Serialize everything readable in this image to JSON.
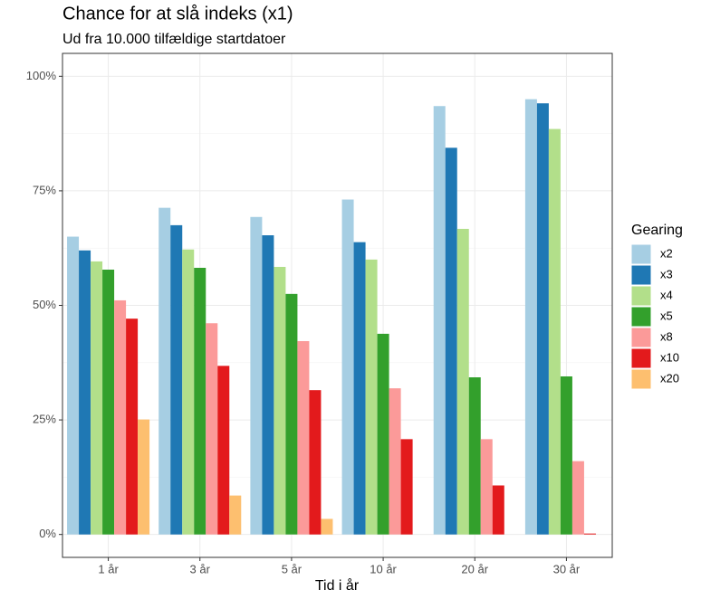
{
  "chart_data": {
    "type": "bar",
    "title": "Chance for at slå indeks (x1)",
    "subtitle": "Ud fra 10.000 tilfældige startdatoer",
    "x_label": "Tid i år",
    "legend_title": "Gearing",
    "categories": [
      "1 år",
      "3 år",
      "5 år",
      "10 år",
      "20 år",
      "30 år"
    ],
    "series": [
      {
        "name": "x2",
        "color": "#a6cee3",
        "values": [
          65,
          71.3,
          69.3,
          73.1,
          93.5,
          95
        ]
      },
      {
        "name": "x3",
        "color": "#1f78b4",
        "values": [
          62,
          67.5,
          65.3,
          63.8,
          84.4,
          94.1
        ]
      },
      {
        "name": "x4",
        "color": "#b2df8a",
        "values": [
          59.6,
          62.2,
          58.4,
          60,
          66.7,
          88.5
        ]
      },
      {
        "name": "x5",
        "color": "#33a02c",
        "values": [
          57.8,
          58.2,
          52.5,
          43.8,
          34.3,
          34.5
        ]
      },
      {
        "name": "x8",
        "color": "#fb9a99",
        "values": [
          51.1,
          46.1,
          42.2,
          31.9,
          20.8,
          16
        ]
      },
      {
        "name": "x10",
        "color": "#e31a1c",
        "values": [
          47.1,
          36.8,
          31.5,
          20.8,
          10.7,
          0.2
        ]
      },
      {
        "name": "x20",
        "color": "#fdbf6f",
        "values": [
          25.1,
          8.5,
          3.4,
          null,
          null,
          null
        ]
      }
    ],
    "ylim": [
      -5,
      105
    ],
    "yticks": [
      {
        "value": 0,
        "label": "0%"
      },
      {
        "value": 25,
        "label": "25%"
      },
      {
        "value": 50,
        "label": "50%"
      },
      {
        "value": 75,
        "label": "75%"
      },
      {
        "value": 100,
        "label": "100%"
      }
    ],
    "grid": true
  }
}
